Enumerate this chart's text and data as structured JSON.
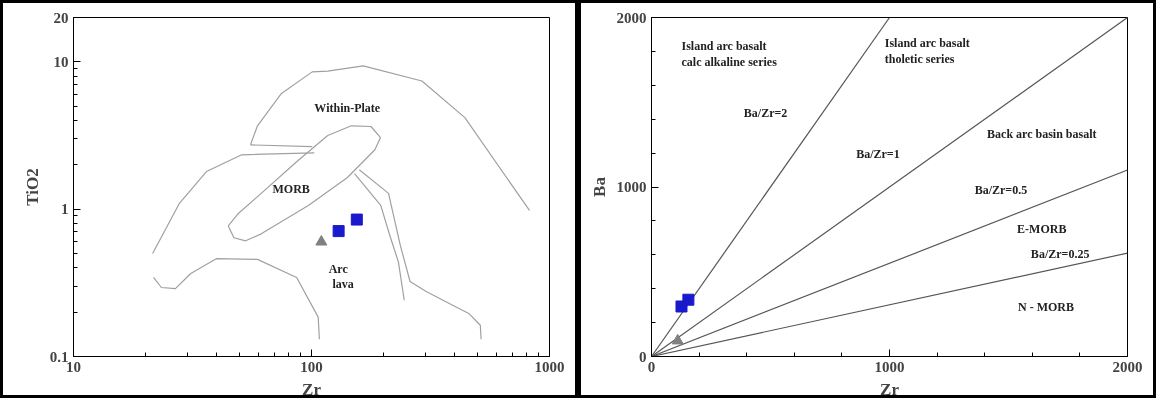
{
  "chart_data": [
    {
      "type": "scatter",
      "xlabel": "Zr",
      "ylabel": "TiO2",
      "log": "xy",
      "grid": false,
      "xlim": [
        10,
        1000
      ],
      "ylim": [
        0.1,
        20
      ],
      "xticks": [
        10,
        {
          "value": 20,
          "label": null
        },
        {
          "value": 30,
          "label": null
        },
        {
          "value": 40,
          "label": null
        },
        {
          "value": 50,
          "label": null
        },
        {
          "value": 60,
          "label": null
        },
        {
          "value": 70,
          "label": null
        },
        {
          "value": 80,
          "label": null
        },
        {
          "value": 90,
          "label": null
        },
        100,
        {
          "value": 200,
          "label": null
        },
        {
          "value": 300,
          "label": null
        },
        {
          "value": 400,
          "label": null
        },
        {
          "value": 500,
          "label": null
        },
        {
          "value": 600,
          "label": null
        },
        {
          "value": 700,
          "label": null
        },
        {
          "value": 800,
          "label": null
        },
        {
          "value": 900,
          "label": null
        },
        1000
      ],
      "yticks": [
        0.1,
        {
          "value": 0.2,
          "label": null
        },
        {
          "value": 0.3,
          "label": null
        },
        {
          "value": 0.4,
          "label": null
        },
        {
          "value": 0.5,
          "label": null
        },
        {
          "value": 0.6,
          "label": null
        },
        {
          "value": 0.7,
          "label": null
        },
        {
          "value": 0.8,
          "label": null
        },
        {
          "value": 0.9,
          "label": null
        },
        1,
        {
          "value": 2,
          "label": null
        },
        {
          "value": 3,
          "label": null
        },
        {
          "value": 4,
          "label": null
        },
        {
          "value": 5,
          "label": null
        },
        {
          "value": 6,
          "label": null
        },
        {
          "value": 7,
          "label": null
        },
        {
          "value": 8,
          "label": null
        },
        {
          "value": 9,
          "label": null
        },
        10,
        20
      ],
      "series": [
        {
          "type": "line",
          "color": "#a0a0a0",
          "x": [
            55.4,
            59.3,
            74.5,
            100.7,
            117,
            165,
            291,
            441,
            824
          ],
          "values": [
            2.73,
            3.68,
            6.07,
            8.55,
            8.66,
            9.4,
            7.41,
            4.18,
            0.98
          ]
        },
        {
          "type": "line",
          "color": "#a0a0a0",
          "x": [
            44.7,
            47.2,
            52.9,
            61.5,
            97,
            141.6,
            184.6,
            195
          ],
          "values": [
            0.77,
            0.64,
            0.61,
            0.68,
            1.06,
            1.64,
            2.53,
            3.06
          ]
        },
        {
          "type": "line",
          "color": "#a0a0a0",
          "x": [
            44.7,
            49.1,
            61.5,
            86.6,
            117,
            147,
            177.8,
            195
          ],
          "values": [
            0.77,
            0.93,
            1.28,
            2.1,
            3.16,
            3.68,
            3.64,
            3.06
          ]
        },
        {
          "type": "line",
          "color": "#a0a0a0",
          "x": [
            55.4,
            100.7
          ],
          "values": [
            2.73,
            2.66
          ]
        },
        {
          "type": "line",
          "color": "#a0a0a0",
          "x": [
            21.5,
            27.8,
            36.2,
            50.9,
            102.7
          ],
          "values": [
            0.5,
            1.09,
            1.8,
            2.34,
            2.41
          ]
        },
        {
          "type": "line",
          "color": "#a0a0a0",
          "x": [
            21.7,
            23.4,
            26.8,
            31.1,
            39.8,
            59.3,
            86.6,
            106.7,
            107.9
          ],
          "values": [
            0.344,
            0.294,
            0.289,
            0.366,
            0.461,
            0.456,
            0.344,
            0.185,
            0.131
          ]
        },
        {
          "type": "line",
          "color": "#a0a0a0",
          "x": [
            151.6,
            195.4,
            214.8,
            231.7,
            245.3
          ],
          "values": [
            1.74,
            1.06,
            0.64,
            0.44,
            0.241
          ]
        },
        {
          "type": "line",
          "color": "#a0a0a0",
          "x": [
            158.8,
            210.7,
            236,
            259.5,
            302,
            393.8,
            458,
            512,
            516
          ],
          "values": [
            1.85,
            1.28,
            0.57,
            0.323,
            0.277,
            0.222,
            0.196,
            0.163,
            0.131
          ]
        },
        {
          "marker": "triangle",
          "color": "#808080",
          "x": [
            110
          ],
          "values": [
            0.6
          ]
        },
        {
          "marker": "square",
          "color": "#1a1acc",
          "x": [
            130,
            155
          ],
          "values": [
            0.71,
            0.85
          ]
        }
      ],
      "annotations": [
        "Within-Plate",
        "MORB",
        "Arc",
        "lava"
      ]
    },
    {
      "type": "scatter",
      "xlabel": "Zr",
      "ylabel": "Ba",
      "grid": false,
      "xlim": [
        0,
        2000
      ],
      "ylim": [
        0,
        2000
      ],
      "xticks": [
        0,
        {
          "value": 200,
          "label": null
        },
        {
          "value": 400,
          "label": null
        },
        {
          "value": 600,
          "label": null
        },
        {
          "value": 800,
          "label": null
        },
        1000,
        {
          "value": 1200,
          "label": null
        },
        {
          "value": 1400,
          "label": null
        },
        {
          "value": 1600,
          "label": null
        },
        {
          "value": 1800,
          "label": null
        },
        2000
      ],
      "yticks": [
        0,
        {
          "value": 200,
          "label": null
        },
        {
          "value": 400,
          "label": null
        },
        {
          "value": 600,
          "label": null
        },
        {
          "value": 800,
          "label": null
        },
        1000,
        {
          "value": 1200,
          "label": null
        },
        {
          "value": 1400,
          "label": null
        },
        {
          "value": 1600,
          "label": null
        },
        {
          "value": 1800,
          "label": null
        },
        2000
      ],
      "series": [
        {
          "type": "line",
          "color": "#555555",
          "x": [
            0,
            1000
          ],
          "values": [
            0,
            2000
          ]
        },
        {
          "type": "line",
          "color": "#555555",
          "x": [
            0,
            2000
          ],
          "values": [
            0,
            2000
          ]
        },
        {
          "type": "line",
          "color": "#555555",
          "x": [
            0,
            2000
          ],
          "values": [
            0,
            1100
          ]
        },
        {
          "type": "line",
          "color": "#555555",
          "x": [
            0,
            2000
          ],
          "values": [
            0,
            610
          ]
        },
        {
          "marker": "triangle",
          "color": "#808080",
          "x": [
            110
          ],
          "values": [
            93
          ]
        },
        {
          "marker": "square",
          "color": "#1a1acc",
          "x": [
            126,
            155
          ],
          "values": [
            295,
            335
          ]
        }
      ],
      "annotations": [
        "Island arc basalt",
        "calc alkaline series",
        "Island arc basalt",
        "tholetic series",
        "Ba/Zr=2",
        "Ba/Zr=1",
        "Back arc basin basalt",
        "Ba/Zr=0.5",
        "E-MORB",
        "Ba/Zr=0.25",
        "N - MORB"
      ]
    }
  ]
}
